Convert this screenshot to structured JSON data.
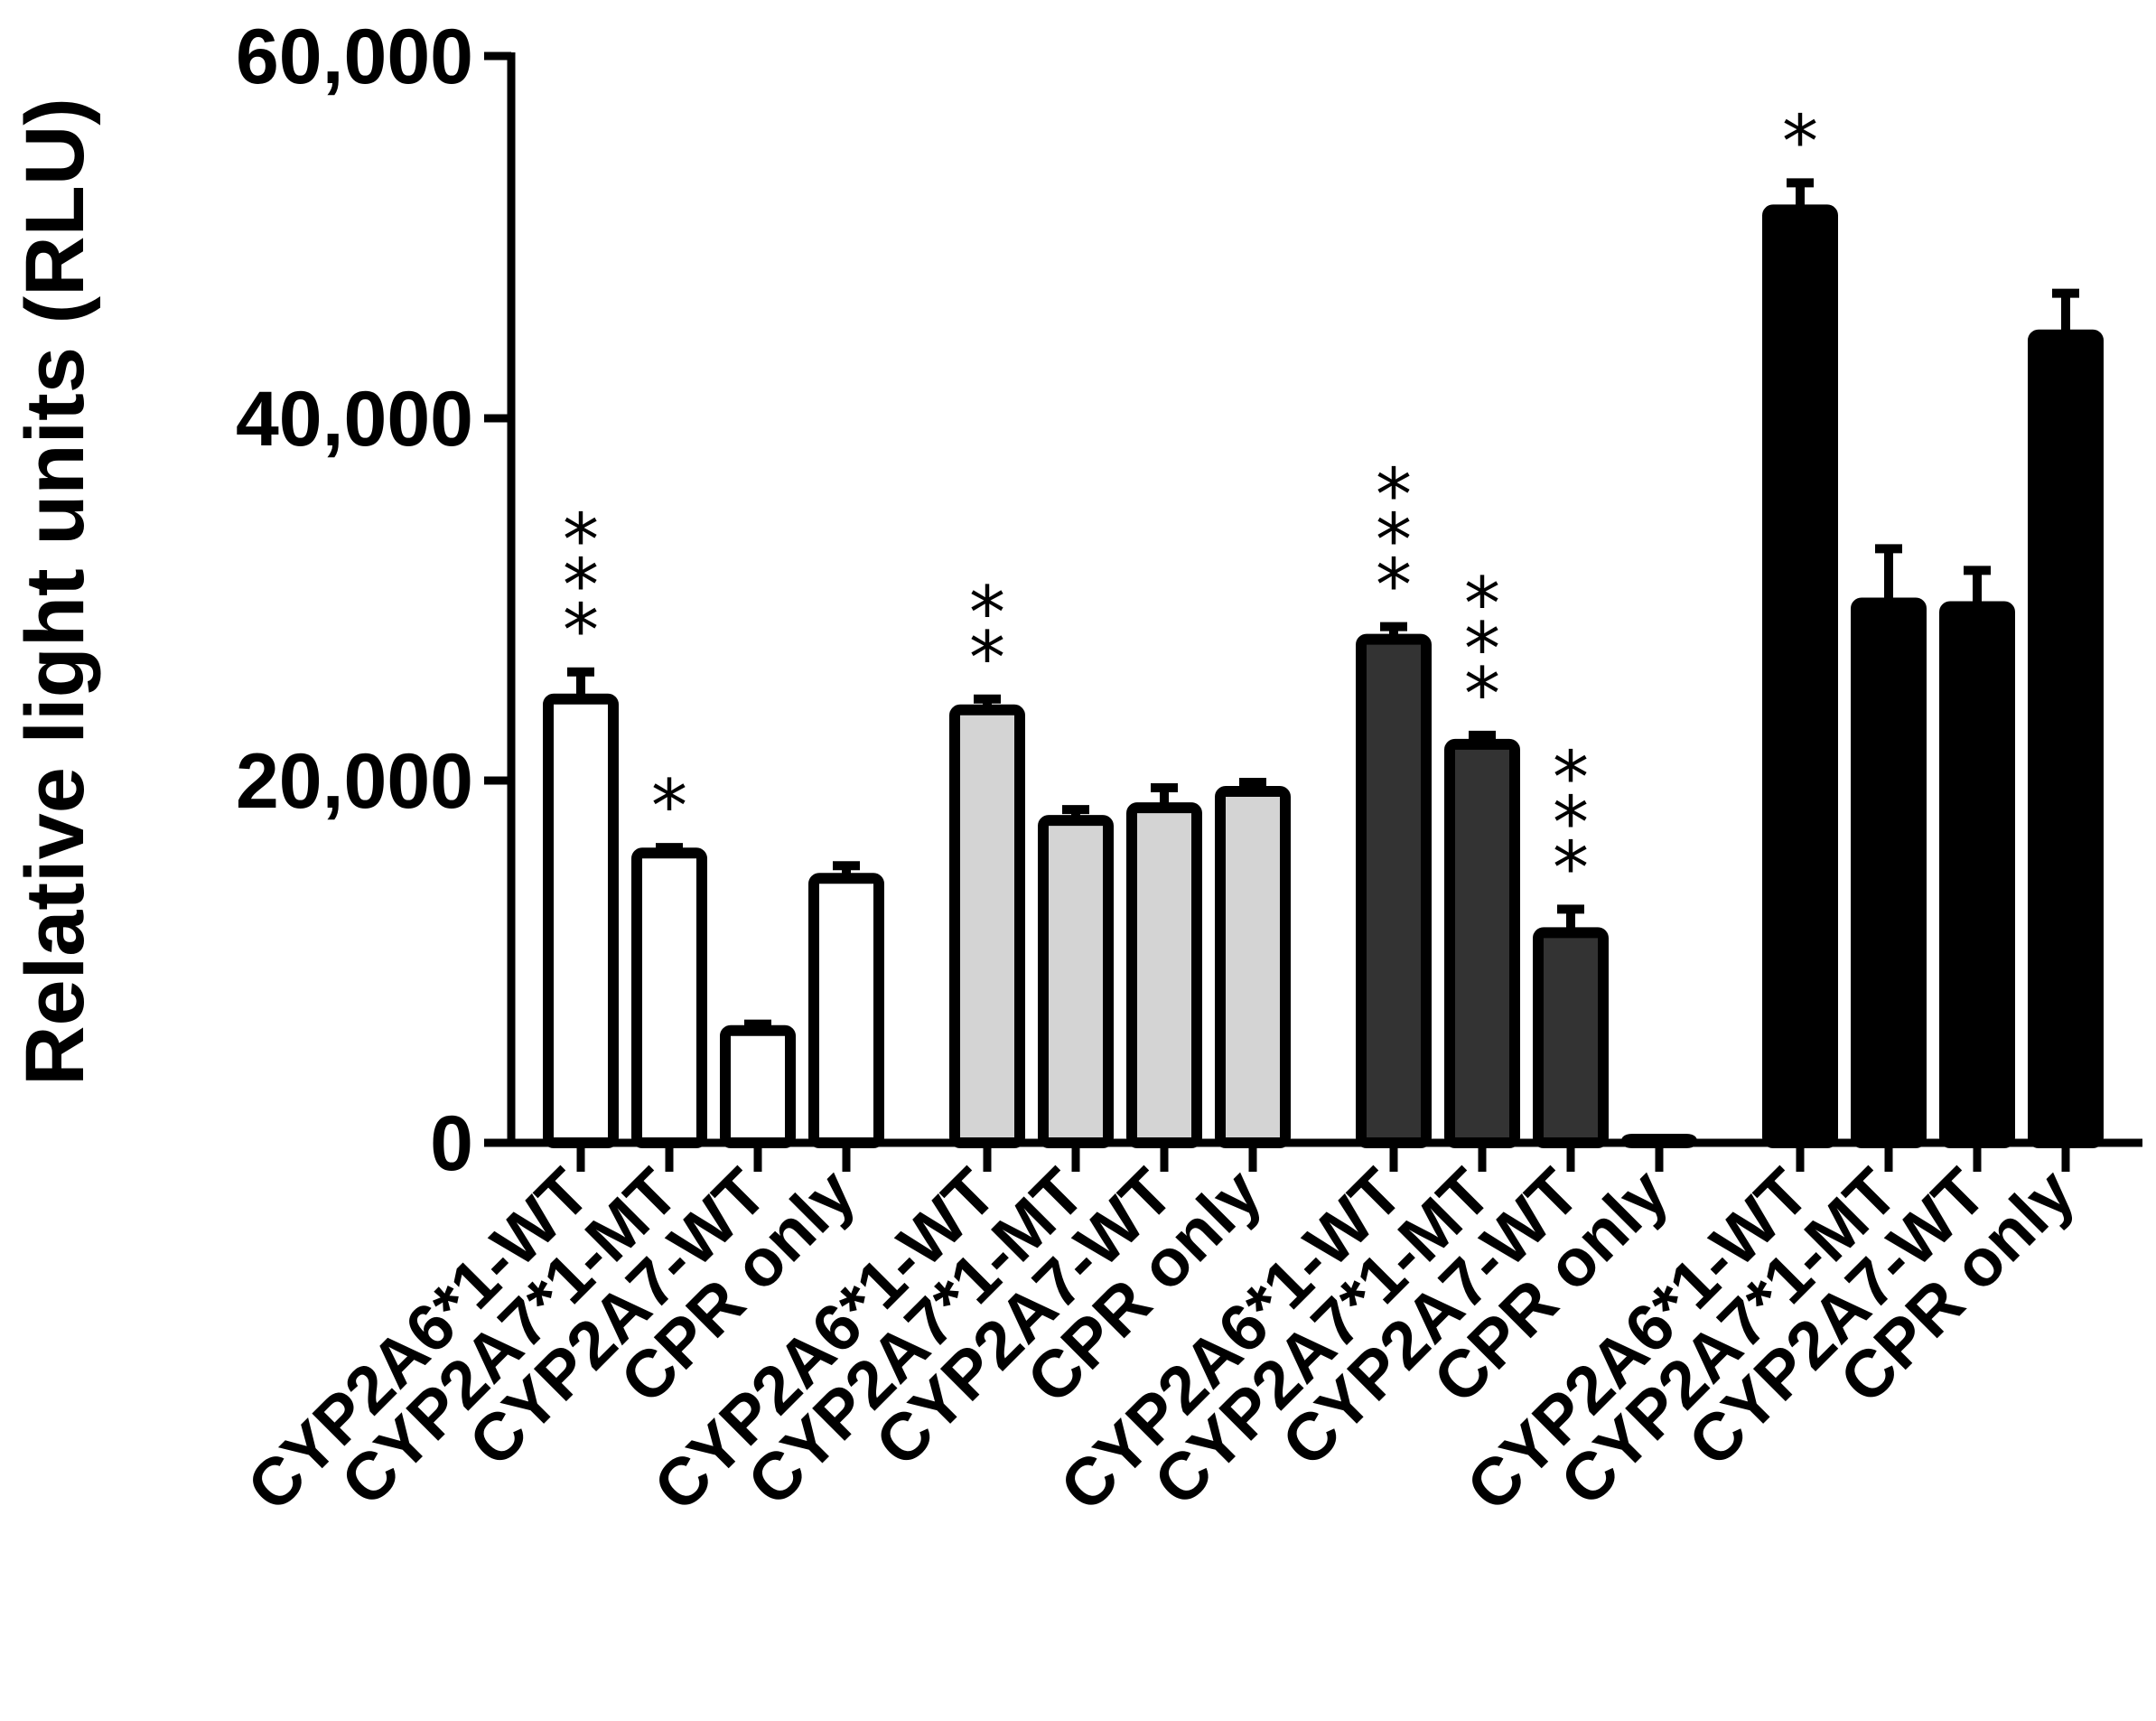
{
  "chart_data": {
    "type": "bar",
    "ylabel": "Relative light units (RLU)",
    "xlabel": "",
    "ylim": [
      0,
      60000
    ],
    "yticks": [
      0,
      20000,
      40000,
      60000
    ],
    "ytick_labels": [
      "0",
      "20,000",
      "40,000",
      "60,000"
    ],
    "grid": false,
    "legend": "none",
    "groups": [
      {
        "fill": "#ffffff",
        "bars": [
          {
            "label": "CYP2A6*1-WT",
            "value": 24500,
            "error": 1500,
            "sig": "***"
          },
          {
            "label": "CYP2A7*1-MT",
            "value": 16000,
            "error": 300,
            "sig": "*"
          },
          {
            "label": "CYP2A7-WT",
            "value": 6200,
            "error": 350,
            "sig": ""
          },
          {
            "label": "CPR only",
            "value": 14600,
            "error": 700,
            "sig": ""
          }
        ]
      },
      {
        "fill": "#d4d4d4",
        "bars": [
          {
            "label": "CYP2A6*1-WT",
            "value": 23900,
            "error": 600,
            "sig": "**"
          },
          {
            "label": "CYP2A7*1-MT",
            "value": 17800,
            "error": 600,
            "sig": ""
          },
          {
            "label": "CYP2A7-WT",
            "value": 18500,
            "error": 1100,
            "sig": ""
          },
          {
            "label": "CPR only",
            "value": 19400,
            "error": 500,
            "sig": ""
          }
        ]
      },
      {
        "fill": "#333333",
        "bars": [
          {
            "label": "CYP2A6*1-WT",
            "value": 27800,
            "error": 700,
            "sig": "***"
          },
          {
            "label": "CYP2A7*1-MT",
            "value": 22000,
            "error": 500,
            "sig": "***"
          },
          {
            "label": "CYP2A7-WT",
            "value": 11600,
            "error": 1300,
            "sig": "***"
          },
          {
            "label": "CPR only",
            "value": 200,
            "error": 0,
            "sig": ""
          }
        ]
      },
      {
        "fill": "#000000",
        "bars": [
          {
            "label": "CYP2A6*1-WT",
            "value": 51500,
            "error": 1500,
            "sig": "*"
          },
          {
            "label": "CYP2A7*1-MT",
            "value": 29800,
            "error": 3000,
            "sig": ""
          },
          {
            "label": "CYP2A7-WT",
            "value": 29600,
            "error": 2000,
            "sig": ""
          },
          {
            "label": "CPR only",
            "value": 44600,
            "error": 2300,
            "sig": ""
          }
        ]
      }
    ]
  }
}
